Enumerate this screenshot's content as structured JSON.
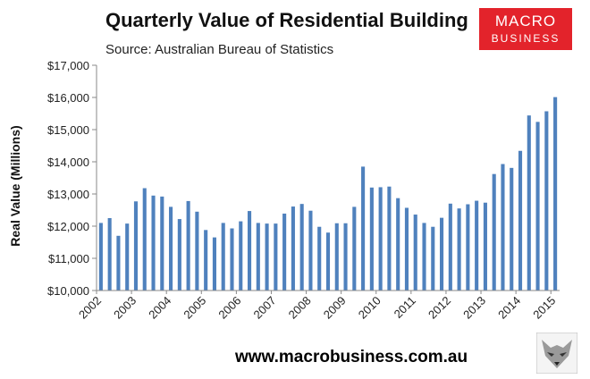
{
  "brand": {
    "line1": "MACRO",
    "line2": "BUSINESS",
    "color": "#e3232b"
  },
  "footer": {
    "url": "www.macrobusiness.com.au"
  },
  "chart_data": {
    "type": "bar",
    "title": "Quarterly Value of Residential Building",
    "subtitle": "Source: Australian Bureau of Statistics",
    "xlabel": "",
    "ylabel": "Real Value (Millions)",
    "ylim": [
      10000,
      17000
    ],
    "yticks": [
      10000,
      11000,
      12000,
      13000,
      14000,
      15000,
      16000,
      17000
    ],
    "ytick_labels": [
      "$10,000",
      "$11,000",
      "$12,000",
      "$13,000",
      "$14,000",
      "$15,000",
      "$16,000",
      "$17,000"
    ],
    "xtick_labels": [
      "2002",
      "2003",
      "2004",
      "2005",
      "2006",
      "2007",
      "2008",
      "2009",
      "2010",
      "2011",
      "2012",
      "2013",
      "2014",
      "2015"
    ],
    "bar_color": "#4f81bd",
    "grid": false,
    "values": [
      12100,
      12250,
      11700,
      12080,
      12770,
      13180,
      12950,
      12920,
      12600,
      12220,
      12780,
      12450,
      11880,
      11650,
      12100,
      11930,
      12150,
      12470,
      12100,
      12080,
      12080,
      12390,
      12610,
      12690,
      12480,
      11980,
      11800,
      12090,
      12090,
      12600,
      13850,
      13200,
      13210,
      13230,
      12870,
      12570,
      12360,
      12100,
      11980,
      12260,
      12700,
      12550,
      12680,
      12790,
      12730,
      13620,
      13930,
      13810,
      14340,
      15440,
      15240,
      15570,
      16010
    ]
  }
}
